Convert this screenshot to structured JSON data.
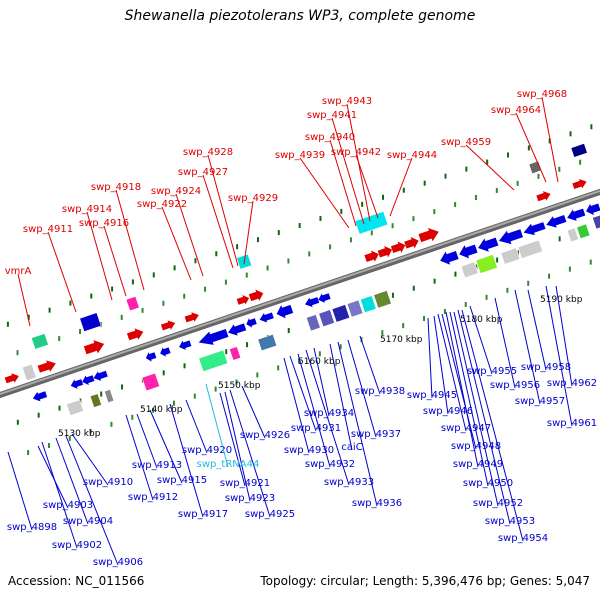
{
  "title": "Shewanella piezotolerans WP3, complete genome",
  "footer": {
    "accession": "Accession: NC_011566",
    "topology": "Topology: circular; Length: 5,396,476 bp; Genes: 5,047"
  },
  "colors": {
    "forward_label": "#dd0000",
    "reverse_label": "#0000cc",
    "trna_label": "#22bbdd",
    "backbone": "#888888"
  },
  "ticks": [
    "5130 kbp",
    "5140 kbp",
    "5150 kbp",
    "5160 kbp",
    "5170 kbp",
    "5180 kbp",
    "5190 kbp"
  ],
  "forward_labels": [
    "vmrA",
    "swp_4911",
    "swp_4914",
    "swp_4916",
    "swp_4918",
    "swp_4922",
    "swp_4924",
    "swp_4927",
    "swp_4928",
    "swp_4929",
    "swp_4939",
    "swp_4940",
    "swp_4941",
    "swp_4943",
    "swp_4942",
    "swp_4944",
    "swp_4959",
    "swp_4964",
    "swp_4968"
  ],
  "reverse_labels": [
    "swp_4898",
    "swp_4902",
    "swp_4903",
    "swp_4904",
    "swp_4906",
    "swp_4910",
    "swp_4912",
    "swp_4913",
    "swp_4915",
    "swp_4917",
    "swp_4920",
    "swp_4921",
    "swp_4923",
    "swp_4925",
    "swp_4926",
    "swp_4930",
    "swp_4931",
    "swp_4932",
    "swp_4933",
    "swp_4934",
    "caiC",
    "swp_4936",
    "swp_4937",
    "swp_4938",
    "swp_4945",
    "swp_4946",
    "swp_4947",
    "swp_4948",
    "swp_4949",
    "swp_4950",
    "swp_4952",
    "swp_4953",
    "swp_4954",
    "swp_4955",
    "swp_4956",
    "swp_4957",
    "swp_4958",
    "swp_4961",
    "swp_4962"
  ],
  "trna_labels": [
    "swp_tRNA44"
  ]
}
